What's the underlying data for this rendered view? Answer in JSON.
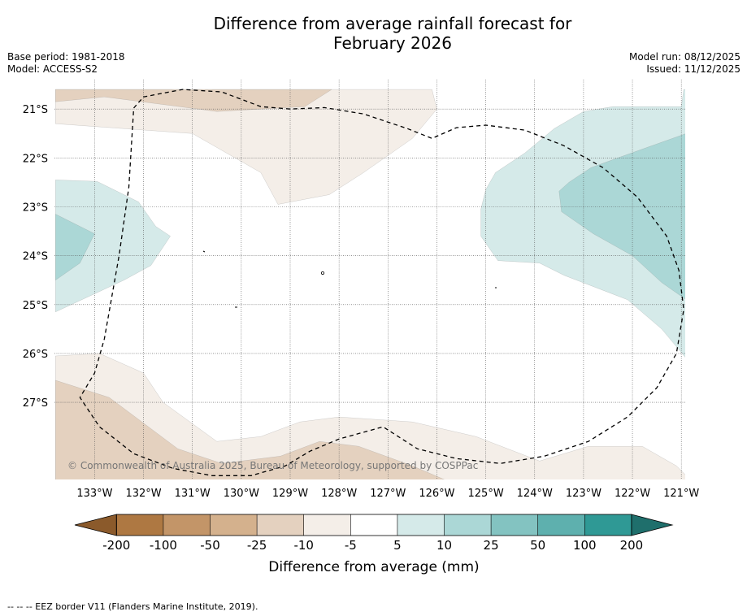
{
  "title_line1": "Difference from average rainfall forecast for",
  "title_line2": "February 2026",
  "base_period": "Base period: 1981-2018",
  "model": "Model: ACCESS-S2",
  "model_run": "Model run: 08/12/2025",
  "issued": "Issued: 11/12/2025",
  "copyright": "© Commonwealth of Australia 2025, Bureau of Meteorology, supported by COSPPac",
  "footnote": "--  --  -- EEZ border V11 (Flanders Marine Institute, 2019).",
  "colors": {
    "c_-200": "#8b5a2b",
    "c_-100": "#ae7842",
    "c_-50": "#c39568",
    "c_-25": "#d4b18d",
    "c_-10": "#e4d1bf",
    "c_-5": "#f4eee8",
    "c_5": "#ffffff",
    "c_10": "#d5eae9",
    "c_25": "#abd7d6",
    "c_50": "#83c3c1",
    "c_100": "#5eb0ae",
    "c_200": "#2f9995",
    "c_max": "#1f6f6c"
  },
  "chart_data": {
    "type": "filled-contour map",
    "units": "mm",
    "lon_range": [
      -133.8,
      -120.9
    ],
    "lat_range": [
      -28.6,
      -20.6
    ],
    "x_ticks": [
      {
        "value": -133,
        "label": "133°W"
      },
      {
        "value": -132,
        "label": "132°W"
      },
      {
        "value": -131,
        "label": "131°W"
      },
      {
        "value": -130,
        "label": "130°W"
      },
      {
        "value": -129,
        "label": "129°W"
      },
      {
        "value": -128,
        "label": "128°W"
      },
      {
        "value": -127,
        "label": "127°W"
      },
      {
        "value": -126,
        "label": "126°W"
      },
      {
        "value": -125,
        "label": "125°W"
      },
      {
        "value": -124,
        "label": "124°W"
      },
      {
        "value": -123,
        "label": "123°W"
      },
      {
        "value": -122,
        "label": "122°W"
      },
      {
        "value": -121,
        "label": "121°W"
      }
    ],
    "y_ticks": [
      {
        "value": -21,
        "label": "21°S"
      },
      {
        "value": -22,
        "label": "22°S"
      },
      {
        "value": -23,
        "label": "23°S"
      },
      {
        "value": -24,
        "label": "24°S"
      },
      {
        "value": -25,
        "label": "25°S"
      },
      {
        "value": -26,
        "label": "26°S"
      },
      {
        "value": -27,
        "label": "27°S"
      }
    ],
    "gridlines": true,
    "colorbar": {
      "label": "Difference from average (mm)",
      "extend": "both",
      "boundaries": [
        "-200",
        "-100",
        "-50",
        "-25",
        "-10",
        "-5",
        "5",
        "10",
        "25",
        "50",
        "100",
        "200"
      ],
      "bins": [
        {
          "from": -200,
          "to": -100,
          "color_key": "c_-100"
        },
        {
          "from": -100,
          "to": -50,
          "color_key": "c_-50"
        },
        {
          "from": -50,
          "to": -25,
          "color_key": "c_-25"
        },
        {
          "from": -25,
          "to": -10,
          "color_key": "c_-10"
        },
        {
          "from": -10,
          "to": -5,
          "color_key": "c_-5"
        },
        {
          "from": -5,
          "to": 5,
          "color_key": "c_5"
        },
        {
          "from": 5,
          "to": 10,
          "color_key": "c_10"
        },
        {
          "from": 10,
          "to": 25,
          "color_key": "c_25"
        },
        {
          "from": 25,
          "to": 50,
          "color_key": "c_50"
        },
        {
          "from": 50,
          "to": 100,
          "color_key": "c_100"
        },
        {
          "from": 100,
          "to": 200,
          "color_key": "c_200"
        }
      ],
      "under_color_key": "c_-200",
      "over_color_key": "c_max"
    },
    "regions": [
      {
        "name": "north-dry-light",
        "bin": "-10 to -5",
        "color_key": "c_-5",
        "points": [
          [
            -133.8,
            -21.3
          ],
          [
            -131,
            -21.5
          ],
          [
            -129.6,
            -22.3
          ],
          [
            -129.25,
            -22.95
          ],
          [
            -128.2,
            -22.75
          ],
          [
            -127.5,
            -22.3
          ],
          [
            -126.5,
            -21.6
          ],
          [
            -126.0,
            -21.0
          ],
          [
            -126.1,
            -20.6
          ],
          [
            -133.8,
            -20.6
          ]
        ]
      },
      {
        "name": "north-dry-mid",
        "bin": "-25 to -10",
        "color_key": "c_-10",
        "points": [
          [
            -133.8,
            -20.85
          ],
          [
            -132.8,
            -20.75
          ],
          [
            -130.5,
            -21.05
          ],
          [
            -128.7,
            -20.95
          ],
          [
            -128.15,
            -20.6
          ],
          [
            -133.8,
            -20.6
          ]
        ]
      },
      {
        "name": "south-dry-light",
        "bin": "-10 to -5",
        "color_key": "c_-5",
        "points": [
          [
            -133.8,
            -26.05
          ],
          [
            -132.9,
            -26.0
          ],
          [
            -132.0,
            -26.4
          ],
          [
            -131.6,
            -27.0
          ],
          [
            -130.5,
            -27.8
          ],
          [
            -129.6,
            -27.7
          ],
          [
            -128.8,
            -27.4
          ],
          [
            -128.0,
            -27.3
          ],
          [
            -126.5,
            -27.4
          ],
          [
            -125.2,
            -27.7
          ],
          [
            -123.9,
            -28.2
          ],
          [
            -122.9,
            -27.9
          ],
          [
            -121.8,
            -27.9
          ],
          [
            -121.1,
            -28.3
          ],
          [
            -120.9,
            -28.5
          ],
          [
            -120.9,
            -28.6
          ],
          [
            -133.8,
            -28.6
          ]
        ]
      },
      {
        "name": "south-dry-mid",
        "bin": "-25 to -10",
        "color_key": "c_-10",
        "points": [
          [
            -133.8,
            -26.55
          ],
          [
            -132.7,
            -26.9
          ],
          [
            -131.3,
            -27.95
          ],
          [
            -130.4,
            -28.25
          ],
          [
            -129.2,
            -28.1
          ],
          [
            -128.4,
            -27.8
          ],
          [
            -127.6,
            -27.9
          ],
          [
            -126.5,
            -28.3
          ],
          [
            -125.8,
            -28.6
          ],
          [
            -133.8,
            -28.6
          ]
        ]
      },
      {
        "name": "west-wet-light",
        "bin": "5 to 10",
        "color_key": "c_10",
        "points": [
          [
            -133.8,
            -22.45
          ],
          [
            -132.95,
            -22.48
          ],
          [
            -132.1,
            -22.9
          ],
          [
            -131.75,
            -23.4
          ],
          [
            -131.45,
            -23.6
          ],
          [
            -131.85,
            -24.2
          ],
          [
            -132.4,
            -24.5
          ],
          [
            -133.8,
            -25.15
          ]
        ]
      },
      {
        "name": "west-wet-mid",
        "bin": "10 to 25",
        "color_key": "c_25",
        "points": [
          [
            -133.8,
            -23.15
          ],
          [
            -133.0,
            -23.55
          ],
          [
            -133.3,
            -24.15
          ],
          [
            -133.8,
            -24.5
          ]
        ]
      },
      {
        "name": "east-wet-light",
        "bin": "5 to 10",
        "color_key": "c_10",
        "points": [
          [
            -120.95,
            -20.6
          ],
          [
            -121.0,
            -20.95
          ],
          [
            -122.4,
            -20.95
          ],
          [
            -123.0,
            -21.05
          ],
          [
            -123.6,
            -21.4
          ],
          [
            -124.2,
            -21.9
          ],
          [
            -124.8,
            -22.3
          ],
          [
            -125.0,
            -22.65
          ],
          [
            -125.1,
            -23.05
          ],
          [
            -125.1,
            -23.6
          ],
          [
            -124.75,
            -24.1
          ],
          [
            -123.9,
            -24.15
          ],
          [
            -123.4,
            -24.4
          ],
          [
            -122.1,
            -24.9
          ],
          [
            -121.4,
            -25.5
          ],
          [
            -120.9,
            -26.1
          ],
          [
            -120.9,
            -20.6
          ]
        ]
      },
      {
        "name": "east-wet-mid",
        "bin": "10 to 25",
        "color_key": "c_25",
        "points": [
          [
            -120.9,
            -21.5
          ],
          [
            -121.6,
            -21.75
          ],
          [
            -122.3,
            -22.0
          ],
          [
            -122.85,
            -22.2
          ],
          [
            -123.3,
            -22.5
          ],
          [
            -123.5,
            -22.68
          ],
          [
            -123.45,
            -23.1
          ],
          [
            -122.8,
            -23.55
          ],
          [
            -122.0,
            -24.0
          ],
          [
            -121.4,
            -24.55
          ],
          [
            -120.9,
            -24.9
          ]
        ]
      },
      {
        "name": "eez-border",
        "type": "dashed-line",
        "color_key": "none",
        "points": [
          [
            -132.2,
            -20.98
          ],
          [
            -132.0,
            -20.75
          ],
          [
            -131.2,
            -20.6
          ],
          [
            -130.4,
            -20.65
          ],
          [
            -129.6,
            -20.95
          ],
          [
            -129.0,
            -21.0
          ],
          [
            -128.3,
            -20.97
          ],
          [
            -127.5,
            -21.1
          ],
          [
            -126.6,
            -21.4
          ],
          [
            -126.1,
            -21.6
          ],
          [
            -125.6,
            -21.38
          ],
          [
            -125.0,
            -21.33
          ],
          [
            -124.2,
            -21.43
          ],
          [
            -123.4,
            -21.75
          ],
          [
            -122.6,
            -22.2
          ],
          [
            -121.9,
            -22.8
          ],
          [
            -121.3,
            -23.6
          ],
          [
            -121.05,
            -24.3
          ],
          [
            -120.95,
            -25.1
          ],
          [
            -121.1,
            -26.0
          ],
          [
            -121.5,
            -26.7
          ],
          [
            -122.1,
            -27.3
          ],
          [
            -122.9,
            -27.8
          ],
          [
            -123.8,
            -28.1
          ],
          [
            -124.7,
            -28.25
          ],
          [
            -125.6,
            -28.15
          ],
          [
            -126.4,
            -27.95
          ],
          [
            -127.1,
            -27.5
          ],
          [
            -128.0,
            -27.75
          ],
          [
            -128.6,
            -28.0
          ],
          [
            -129.1,
            -28.3
          ],
          [
            -129.8,
            -28.5
          ],
          [
            -130.6,
            -28.5
          ],
          [
            -131.4,
            -28.35
          ],
          [
            -132.2,
            -28.05
          ],
          [
            -132.9,
            -27.5
          ],
          [
            -133.3,
            -26.9
          ],
          [
            -133.0,
            -26.4
          ],
          [
            -132.8,
            -25.7
          ],
          [
            -132.5,
            -24.0
          ],
          [
            -132.3,
            -22.6
          ],
          [
            -132.2,
            -20.98
          ]
        ]
      }
    ]
  }
}
